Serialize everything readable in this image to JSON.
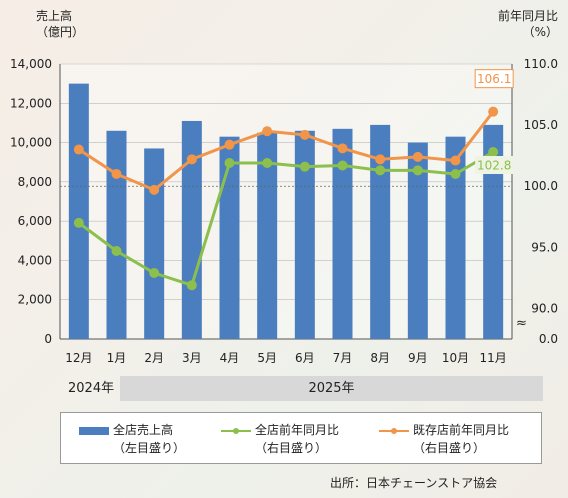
{
  "chart_data": {
    "type": "bar",
    "left_axis_title": "売上高",
    "left_axis_unit": "（億円）",
    "right_axis_title": "前年同月比",
    "right_axis_unit": "（%）",
    "categories": [
      "12月",
      "1月",
      "2月",
      "3月",
      "4月",
      "5月",
      "6月",
      "7月",
      "8月",
      "9月",
      "10月",
      "11月"
    ],
    "year_labels": [
      "2024年",
      "2025年"
    ],
    "left_axis": {
      "min": 0,
      "max": 14000,
      "ticks": [
        "0",
        "2,000",
        "4,000",
        "6,000",
        "8,000",
        "10,000",
        "12,000",
        "14,000"
      ]
    },
    "right_axis": {
      "ticks": [
        "0.0",
        "90.0",
        "95.0",
        "100.0",
        "105.0",
        "110.0"
      ],
      "break_symbol": "≈",
      "scale_min": 87.5,
      "scale_max": 110
    },
    "series": [
      {
        "name": "全店売上高",
        "name_sub": "（左目盛り）",
        "axis": "left",
        "kind": "bar",
        "color": "#4a7ebf",
        "values": [
          13000,
          10600,
          9700,
          11100,
          10300,
          10500,
          10600,
          10700,
          10900,
          10000,
          10300,
          10900
        ]
      },
      {
        "name": "全店前年同月比",
        "name_sub": "（右目盛り）",
        "axis": "right",
        "kind": "line",
        "color": "#8cbf4c",
        "values": [
          97.0,
          94.7,
          92.9,
          91.9,
          101.9,
          101.9,
          101.6,
          101.7,
          101.3,
          101.3,
          101.0,
          102.8
        ]
      },
      {
        "name": "既存店前年同月比",
        "name_sub": "（右目盛り）",
        "axis": "right",
        "kind": "line",
        "color": "#f0954a",
        "values": [
          103.0,
          101.0,
          99.7,
          102.2,
          103.4,
          104.5,
          104.2,
          103.1,
          102.2,
          102.4,
          102.1,
          106.1
        ]
      }
    ],
    "annotations": [
      {
        "text": "106.1",
        "series": "既存店前年同月比",
        "index": 11
      },
      {
        "text": "102.8",
        "series": "全店前年同月比",
        "index": 11
      }
    ],
    "reference_line": {
      "value": 100.0,
      "axis": "right",
      "style": "dotted"
    }
  },
  "source_text": "出所：日本チェーンストア協会"
}
